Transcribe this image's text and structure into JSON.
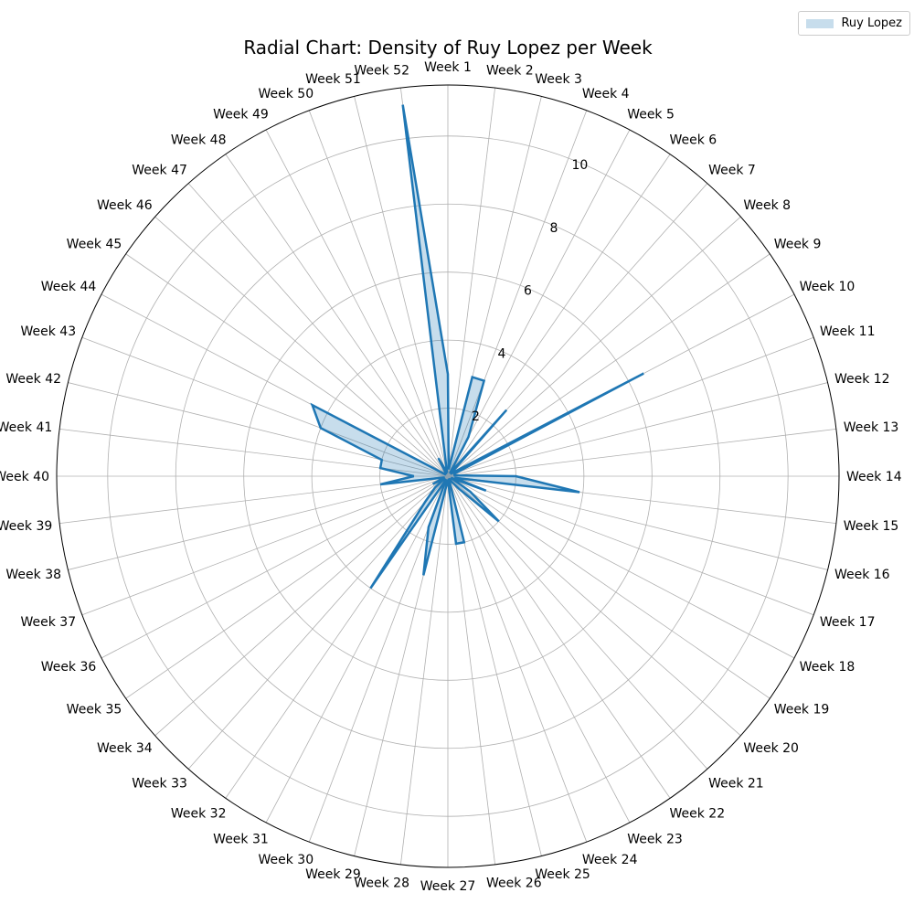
{
  "chart_data": {
    "type": "radar",
    "title": "Radial Chart: Density of Ruy Lopez per Week",
    "categories": [
      "Week 1",
      "Week 2",
      "Week 3",
      "Week 4",
      "Week 5",
      "Week 6",
      "Week 7",
      "Week 8",
      "Week 9",
      "Week 10",
      "Week 11",
      "Week 12",
      "Week 13",
      "Week 14",
      "Week 15",
      "Week 16",
      "Week 17",
      "Week 18",
      "Week 19",
      "Week 20",
      "Week 21",
      "Week 22",
      "Week 23",
      "Week 24",
      "Week 25",
      "Week 26",
      "Week 27",
      "Week 28",
      "Week 29",
      "Week 30",
      "Week 31",
      "Week 32",
      "Week 33",
      "Week 34",
      "Week 35",
      "Week 36",
      "Week 37",
      "Week 38",
      "Week 39",
      "Week 40",
      "Week 41",
      "Week 42",
      "Week 43",
      "Week 44",
      "Week 45",
      "Week 46",
      "Week 47",
      "Week 48",
      "Week 49",
      "Week 50",
      "Week 51",
      "Week 52"
    ],
    "series": [
      {
        "name": "Ruy Lopez",
        "values": [
          3.0,
          0.2,
          3.0,
          3.0,
          1.3,
          0.1,
          2.6,
          0.1,
          0.2,
          6.5,
          0.2,
          0.2,
          0.2,
          2.0,
          3.9,
          0.2,
          1.2,
          0.1,
          0.8,
          2.0,
          0.5,
          0.2,
          0.1,
          0.1,
          2.0,
          2.0,
          0.1,
          0.2,
          3.0,
          1.6,
          0.1,
          4.0,
          1.0,
          0.5,
          0.1,
          0.5,
          0.1,
          0.2,
          2.0,
          1.0,
          2.0,
          2.0,
          4.0,
          4.5,
          0.1,
          0.1,
          0.1,
          0.1,
          0.6,
          0.2,
          0.1,
          11.0
        ],
        "color": "#1f77b4"
      }
    ],
    "r_ticks": [
      2,
      4,
      6,
      8,
      10
    ],
    "r_max": 11.5,
    "grid": true,
    "legend_position": "top-right"
  }
}
